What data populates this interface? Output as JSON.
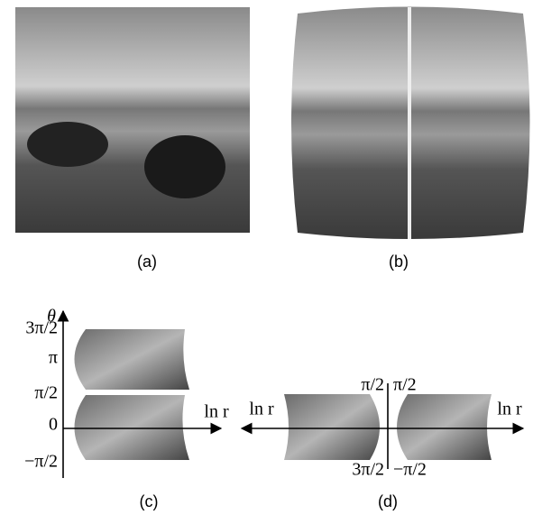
{
  "panels": [
    {
      "caption": "(a)"
    },
    {
      "caption": "(b)"
    },
    {
      "caption": "(c)",
      "y_axis_label": "θ",
      "x_axis_label": "ln r",
      "tick_labels": [
        "3π/2",
        "π",
        "π/2",
        "0",
        "−π/2"
      ]
    },
    {
      "caption": "(d)",
      "left_axis_label": "ln r",
      "right_axis_label": "ln r",
      "top_labels": [
        "π/2",
        "π/2"
      ],
      "bottom_labels": [
        "3π/2",
        "−π/2"
      ]
    }
  ]
}
